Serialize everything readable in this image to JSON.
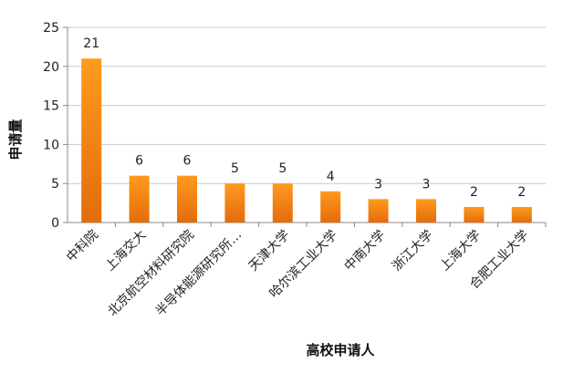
{
  "chart_data": {
    "type": "bar",
    "title": "",
    "xlabel": "高校申请人",
    "ylabel": "申请量",
    "ylim": [
      0,
      25
    ],
    "yticks": [
      0,
      5,
      10,
      15,
      20,
      25
    ],
    "grid": true,
    "legend": "none",
    "categories": [
      "中科院",
      "上海交大",
      "北京航空材料研究院",
      "半导体能源研究所…",
      "天津大学",
      "哈尔滨工业大学",
      "中南大学",
      "浙江大学",
      "上海大学",
      "合肥工业大学"
    ],
    "values": [
      21,
      6,
      6,
      5,
      5,
      4,
      3,
      3,
      2,
      2
    ],
    "data_labels": [
      "21",
      "6",
      "6",
      "5",
      "5",
      "4",
      "3",
      "3",
      "2",
      "2"
    ],
    "colors": {
      "bar_top": "#ff9a1e",
      "bar_bottom": "#e46c0a",
      "grid": "#c9c9c9",
      "axis": "#888888"
    }
  }
}
